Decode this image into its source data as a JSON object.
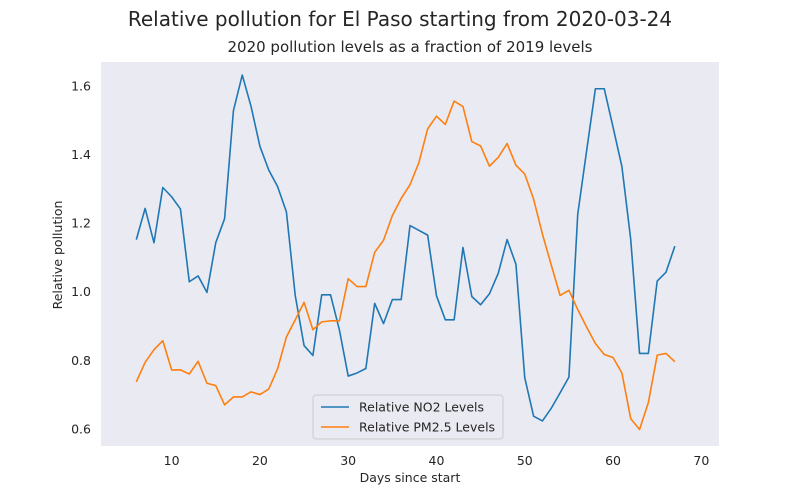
{
  "chart_data": {
    "type": "line",
    "title": "Relative pollution for El Paso starting from 2020-03-24",
    "subtitle": "2020 pollution levels as a fraction of 2019 levels",
    "xlabel": "Days since start",
    "ylabel": "Relative pollution",
    "xlim": [
      2,
      72
    ],
    "ylim": [
      0.55,
      1.67
    ],
    "xticks": [
      10,
      20,
      30,
      40,
      50,
      60,
      70
    ],
    "yticks": [
      0.6,
      0.8,
      1.0,
      1.2,
      1.4,
      1.6
    ],
    "ytick_labels": [
      "0.6",
      "0.8",
      "1.0",
      "1.2",
      "1.4",
      "1.6"
    ],
    "grid": false,
    "legend_position": "lower-center",
    "background_color": "#eaeaf2",
    "x": [
      6,
      7,
      8,
      9,
      10,
      11,
      12,
      13,
      14,
      15,
      16,
      17,
      18,
      19,
      20,
      21,
      22,
      23,
      24,
      25,
      26,
      27,
      28,
      29,
      30,
      31,
      32,
      33,
      34,
      35,
      36,
      37,
      38,
      39,
      40,
      41,
      42,
      43,
      44,
      45,
      46,
      47,
      48,
      49,
      50,
      51,
      52,
      53,
      54,
      55,
      56,
      57,
      58,
      59,
      60,
      61,
      62,
      63,
      64,
      65,
      66,
      67
    ],
    "series": [
      {
        "name": "Relative NO2 Levels",
        "color": "#1f77b4",
        "values": [
          1.152,
          1.243,
          1.143,
          1.304,
          1.277,
          1.241,
          1.029,
          1.046,
          0.998,
          1.143,
          1.213,
          1.528,
          1.632,
          1.54,
          1.424,
          1.355,
          1.307,
          1.233,
          0.989,
          0.843,
          0.814,
          0.991,
          0.991,
          0.889,
          0.754,
          0.763,
          0.776,
          0.966,
          0.907,
          0.977,
          0.977,
          1.193,
          1.179,
          1.165,
          0.988,
          0.918,
          0.918,
          1.129,
          0.986,
          0.962,
          0.994,
          1.054,
          1.152,
          1.08,
          0.749,
          0.637,
          0.623,
          0.66,
          0.705,
          0.751,
          1.226,
          1.41,
          1.592,
          1.592,
          1.48,
          1.365,
          1.153,
          0.82,
          0.82,
          1.031,
          1.057,
          1.133
        ]
      },
      {
        "name": "Relative PM2.5 Levels",
        "color": "#ff7f0e",
        "values": [
          0.737,
          0.794,
          0.831,
          0.857,
          0.772,
          0.772,
          0.76,
          0.797,
          0.733,
          0.726,
          0.67,
          0.693,
          0.693,
          0.708,
          0.7,
          0.716,
          0.775,
          0.868,
          0.918,
          0.969,
          0.889,
          0.912,
          0.915,
          0.915,
          1.038,
          1.015,
          1.015,
          1.115,
          1.15,
          1.222,
          1.272,
          1.312,
          1.376,
          1.475,
          1.512,
          1.488,
          1.556,
          1.54,
          1.438,
          1.425,
          1.366,
          1.392,
          1.432,
          1.369,
          1.343,
          1.27,
          1.168,
          1.078,
          0.989,
          1.004,
          0.948,
          0.897,
          0.849,
          0.817,
          0.808,
          0.763,
          0.63,
          0.598,
          0.677,
          0.815,
          0.82,
          0.796
        ]
      }
    ]
  }
}
